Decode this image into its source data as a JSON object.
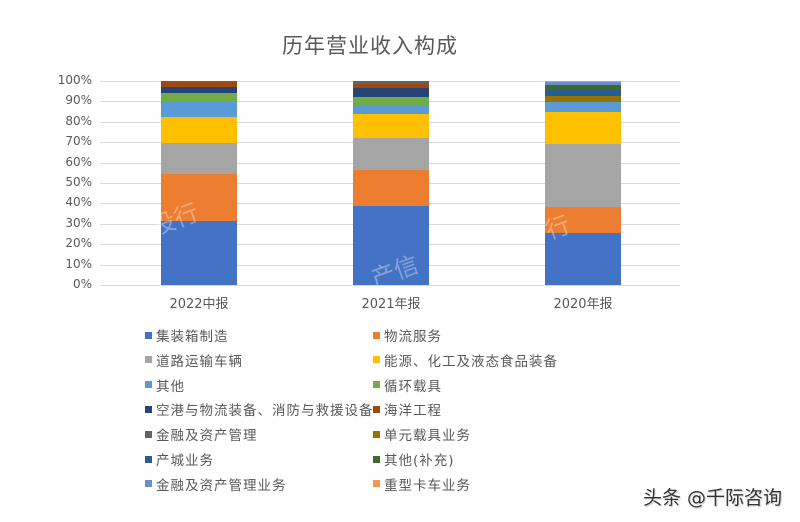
{
  "chart_data": {
    "type": "bar",
    "stacked": "percent",
    "title": "历年营业收入构成",
    "xlabel": "",
    "ylabel": "",
    "ylim": [
      0,
      100
    ],
    "yticks": [
      "0%",
      "10%",
      "20%",
      "30%",
      "40%",
      "50%",
      "60%",
      "70%",
      "80%",
      "90%",
      "100%"
    ],
    "grid": true,
    "legend_position": "bottom",
    "categories": [
      "2022中报",
      "2021年报",
      "2020年报"
    ],
    "series": [
      {
        "name": "集装箱制造",
        "color": "#4472C4",
        "values": [
          31.4,
          38.8,
          25.6
        ]
      },
      {
        "name": "物流服务",
        "color": "#ED7D31",
        "values": [
          23.1,
          17.7,
          12.7
        ]
      },
      {
        "name": "道路运输车辆",
        "color": "#A5A5A5",
        "values": [
          15.3,
          15.7,
          31.5
        ]
      },
      {
        "name": "能源、化工及液态食品装备",
        "color": "#FFC000",
        "values": [
          12.8,
          11.8,
          15.7
        ]
      },
      {
        "name": "其他",
        "color": "#5B9BD5",
        "values": [
          7.6,
          4.0,
          4.9
        ]
      },
      {
        "name": "循环载具",
        "color": "#70AD47",
        "values": [
          3.9,
          4.4,
          0
        ]
      },
      {
        "name": "空港与物流装备、消防与救援设备",
        "color": "#264478",
        "values": [
          3.2,
          4.2,
          0
        ]
      },
      {
        "name": "海洋工程",
        "color": "#9E480E",
        "values": [
          2.2,
          2.2,
          0
        ]
      },
      {
        "name": "金融及资产管理",
        "color": "#636363",
        "values": [
          0.5,
          1.2,
          0
        ]
      },
      {
        "name": "单元载具业务",
        "color": "#997300",
        "values": [
          0,
          0,
          3.0
        ]
      },
      {
        "name": "产城业务",
        "color": "#255E91",
        "values": [
          0,
          0,
          2.9
        ]
      },
      {
        "name": "其他(补充)",
        "color": "#43682B",
        "values": [
          0,
          0,
          2.5
        ]
      },
      {
        "name": "金融及资产管理业务",
        "color": "#698ED0",
        "values": [
          0,
          0,
          1.2
        ]
      },
      {
        "name": "重型卡车业务",
        "color": "#F1975A",
        "values": [
          0,
          0,
          0.7
        ]
      }
    ]
  },
  "watermark": [
    "投行",
    "产信",
    "行"
  ],
  "brand": "头条 @千际咨询"
}
